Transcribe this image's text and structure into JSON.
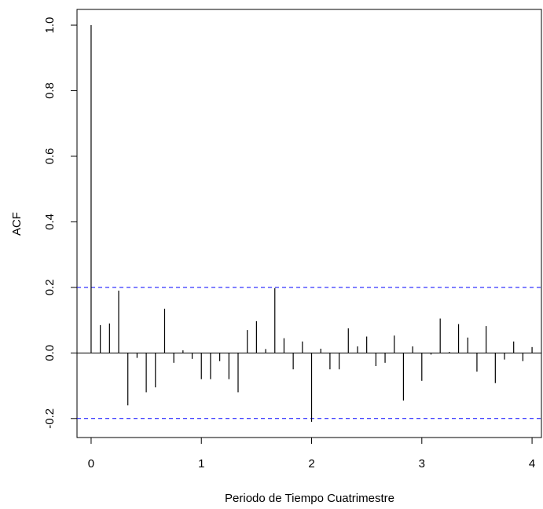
{
  "chart_data": {
    "type": "acf",
    "x_label": "Periodo de Tiempo Cuatrimestre",
    "y_label": "ACF",
    "x": [
      0,
      0.0833,
      0.1667,
      0.25,
      0.3333,
      0.4167,
      0.5,
      0.5833,
      0.6667,
      0.75,
      0.8333,
      0.9167,
      1,
      1.0833,
      1.1667,
      1.25,
      1.3333,
      1.4167,
      1.5,
      1.5833,
      1.6667,
      1.75,
      1.8333,
      1.9167,
      2,
      2.0833,
      2.1667,
      2.25,
      2.3333,
      2.4167,
      2.5,
      2.5833,
      2.6667,
      2.75,
      2.8333,
      2.9167,
      3,
      3.0833,
      3.1667,
      3.25,
      3.3333,
      3.4167,
      3.5,
      3.5833,
      3.6667,
      3.75,
      3.8333,
      3.9167,
      4
    ],
    "values": [
      1.0,
      0.085,
      0.09,
      0.19,
      -0.16,
      -0.015,
      -0.12,
      -0.105,
      0.135,
      -0.03,
      0.008,
      -0.018,
      -0.08,
      -0.08,
      -0.025,
      -0.08,
      -0.12,
      0.07,
      0.097,
      0.012,
      0.198,
      0.045,
      -0.05,
      0.035,
      -0.21,
      0.013,
      -0.05,
      -0.05,
      0.075,
      0.02,
      0.05,
      -0.04,
      -0.03,
      0.053,
      -0.145,
      0.02,
      -0.085,
      -0.005,
      0.105,
      0.003,
      0.088,
      0.047,
      -0.057,
      0.082,
      -0.092,
      -0.02,
      0.035,
      -0.025,
      0.018
    ],
    "color": "#000000",
    "confidence_bounds": [
      0.2,
      -0.2
    ],
    "confidence_color": "#0000ff",
    "xlim": [
      -0.128,
      4.085
    ],
    "ylim": [
      -0.258,
      1.048
    ],
    "xticks": [
      0,
      1,
      2,
      3,
      4
    ],
    "yticks": [
      -0.2,
      {
        "value": 0,
        "label": "0.0"
      },
      0.2,
      0.4,
      0.6,
      0.8,
      {
        "value": 1,
        "label": "1.0"
      }
    ]
  }
}
